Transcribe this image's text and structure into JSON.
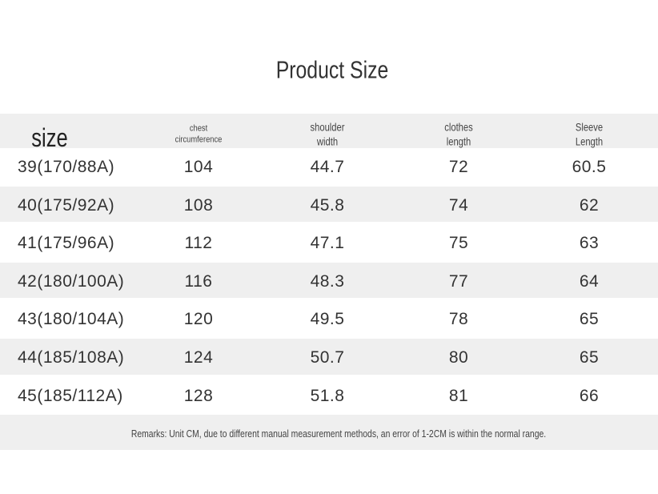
{
  "title": "Product Size",
  "table": {
    "header": [
      [
        "size"
      ],
      [
        "chest",
        "circumference"
      ],
      [
        "shoulder",
        "width"
      ],
      [
        "clothes",
        "length"
      ],
      [
        "Sleeve",
        "Length"
      ]
    ],
    "rows": [
      [
        "39(170/88A)",
        "104",
        "44.7",
        "72",
        "60.5"
      ],
      [
        "40(175/92A)",
        "108",
        "45.8",
        "74",
        "62"
      ],
      [
        "41(175/96A)",
        "112",
        "47.1",
        "75",
        "63"
      ],
      [
        "42(180/100A)",
        "116",
        "48.3",
        "77",
        "64"
      ],
      [
        "43(180/104A)",
        "120",
        "49.5",
        "78",
        "65"
      ],
      [
        "44(185/108A)",
        "124",
        "50.7",
        "80",
        "65"
      ],
      [
        "45(185/112A)",
        "128",
        "51.8",
        "81",
        "66"
      ]
    ],
    "remarks": "Remarks: Unit CM, due to different manual measurement methods, an error of 1-2CM is within the normal range."
  }
}
